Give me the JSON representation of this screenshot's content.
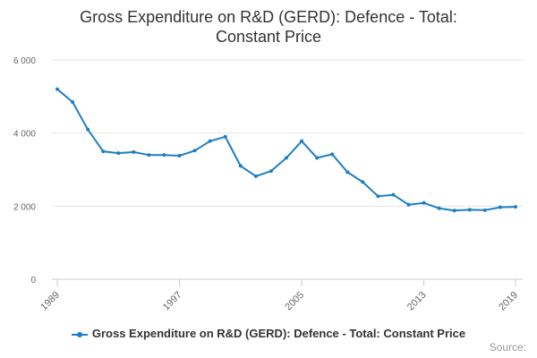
{
  "chart_data": {
    "type": "line",
    "title": [
      "Gross Expenditure on R&D (GERD): Defence - Total:",
      "Constant Price"
    ],
    "xlabel": "",
    "ylabel": "",
    "x_ticks": [
      "1989",
      "1997",
      "2005",
      "2013",
      "2019"
    ],
    "y_ticks": [
      "0",
      "2 000",
      "4 000",
      "6 000"
    ],
    "ylim": [
      0,
      6000
    ],
    "xlim": [
      1989,
      2019
    ],
    "grid": true,
    "legend_position": "bottom",
    "series": [
      {
        "name": "Gross Expenditure on R&D (GERD): Defence - Total: Constant Price",
        "color": "#1f7fc3",
        "x": [
          1989,
          1990,
          1991,
          1992,
          1993,
          1994,
          1995,
          1996,
          1997,
          1998,
          1999,
          2000,
          2001,
          2002,
          2003,
          2004,
          2005,
          2006,
          2007,
          2008,
          2009,
          2010,
          2011,
          2012,
          2013,
          2014,
          2015,
          2016,
          2017,
          2018,
          2019
        ],
        "values": [
          5200,
          4850,
          4100,
          3500,
          3450,
          3480,
          3400,
          3400,
          3380,
          3520,
          3780,
          3900,
          3100,
          2820,
          2960,
          3320,
          3780,
          3320,
          3420,
          2930,
          2660,
          2270,
          2310,
          2040,
          2090,
          1940,
          1880,
          1900,
          1890,
          1970,
          1980
        ]
      }
    ]
  },
  "legend": {
    "label": "Gross Expenditure on R&D (GERD): Defence - Total: Constant Price"
  },
  "source": "Source:"
}
